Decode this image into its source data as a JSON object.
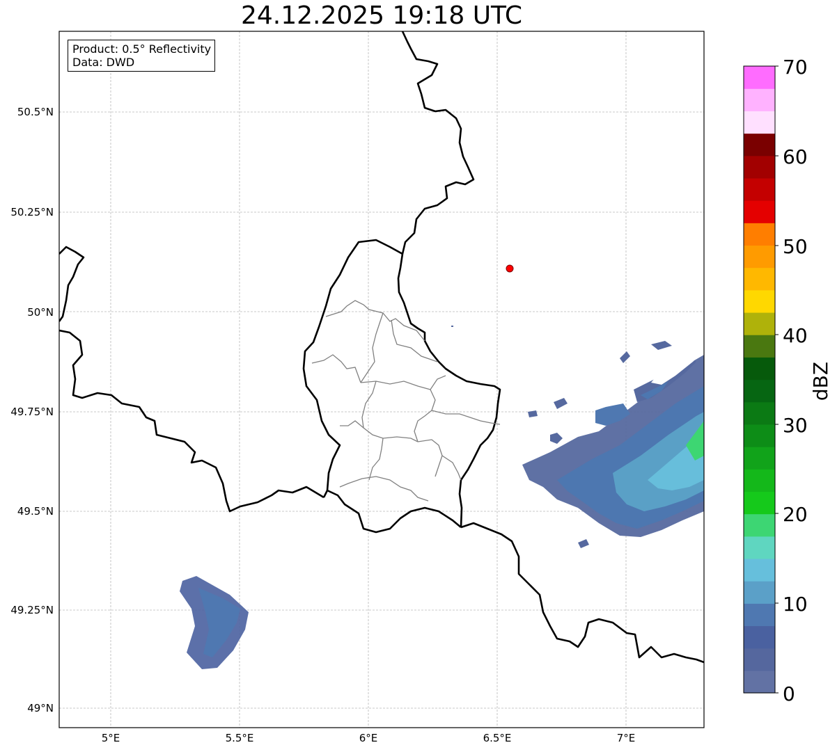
{
  "title": "24.12.2025 19:18 UTC",
  "info": {
    "product": "Product: 0.5° Reflectivity",
    "data": "Data: DWD"
  },
  "map": {
    "lon_range": [
      4.8,
      7.3
    ],
    "lat_range": [
      48.95,
      50.7
    ],
    "lon_ticks": [
      "5°E",
      "5.5°E",
      "6°E",
      "6.5°E",
      "7°E"
    ],
    "lat_ticks": [
      "49°N",
      "49.25°N",
      "49.5°N",
      "49.75°N",
      "50°N",
      "50.25°N",
      "50.5°N"
    ],
    "gridlines": true,
    "radar_site_marker": {
      "lon": 6.55,
      "lat": 50.11,
      "color": "#ff0000"
    }
  },
  "colorbar": {
    "label": "dBZ",
    "ticks": [
      "0",
      "10",
      "20",
      "30",
      "40",
      "50",
      "60",
      "70"
    ],
    "range": [
      0,
      70
    ],
    "step": 2.5,
    "colors": [
      "#6272a4",
      "#55679e",
      "#4a61a0",
      "#4f78b1",
      "#5ba0c8",
      "#66bfdc",
      "#5fd6c0",
      "#3dd673",
      "#15c91b",
      "#14b81a",
      "#11a31a",
      "#0d8d17",
      "#0b7a14",
      "#066612",
      "#065a0b",
      "#4a7810",
      "#afb20a",
      "#ffd800",
      "#ffb800",
      "#ff9b00",
      "#ff7e00",
      "#e40000",
      "#c40000",
      "#a20000",
      "#7a0000",
      "#ffe0ff",
      "#ffb2ff",
      "#ff6cff",
      "#ec36ec"
    ]
  },
  "radar_echoes": [
    {
      "region": "east-band",
      "lon_range": [
        6.6,
        7.3
      ],
      "lat_range": [
        49.43,
        49.9
      ],
      "max_dbz": 20
    },
    {
      "region": "southwest-cluster",
      "lon_range": [
        5.27,
        5.55
      ],
      "lat_range": [
        49.1,
        49.34
      ],
      "max_dbz": 8
    }
  ]
}
